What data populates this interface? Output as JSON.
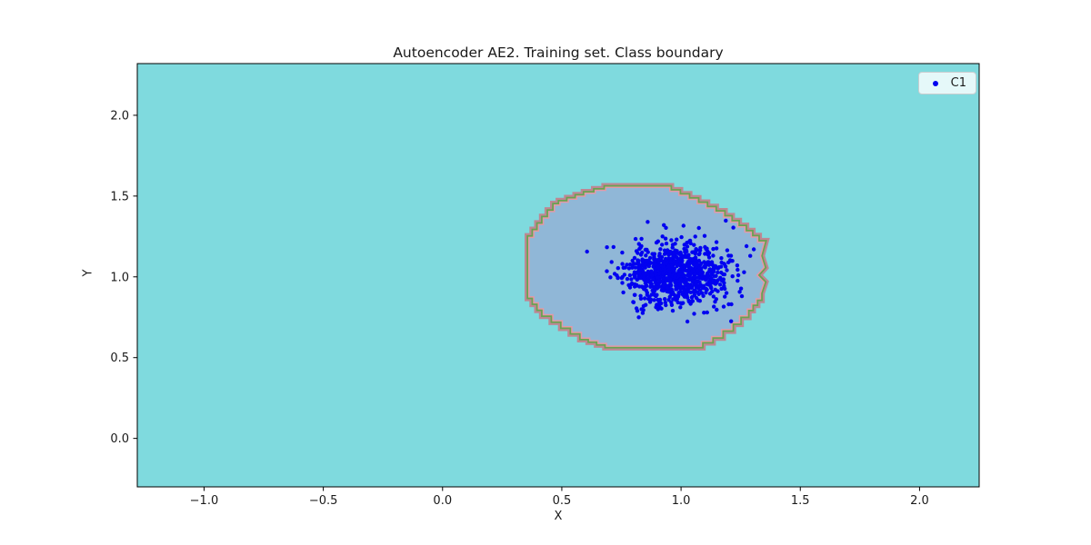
{
  "chart_data": {
    "type": "scatter",
    "title": "Autoencoder AE2. Training set. Class boundary",
    "xlabel": "X",
    "ylabel": "Y",
    "xlim": [
      -1.28,
      2.25
    ],
    "ylim": [
      -0.3,
      2.32
    ],
    "xticks": [
      -1.0,
      -0.5,
      0.0,
      0.5,
      1.0,
      1.5,
      2.0
    ],
    "yticks": [
      0.0,
      0.5,
      1.0,
      1.5,
      2.0
    ],
    "grid": false,
    "plot_background_color": "#7fdade",
    "figure_background_color": "#ffffff",
    "legend": {
      "position": "upper right",
      "entries": [
        {
          "label": "C1",
          "marker_color": "#0202f0"
        }
      ]
    },
    "series": [
      {
        "name": "C1",
        "kind": "gaussian_cluster",
        "color": "#0202f0",
        "center": [
          0.97,
          1.02
        ],
        "std": [
          0.105,
          0.095
        ],
        "n": 900,
        "seed": 11,
        "marker_radius_px": 2.2,
        "extra_points": [
          [
            1.305,
            1.17
          ],
          [
            1.29,
            1.13
          ],
          [
            1.21,
            0.725
          ],
          [
            1.255,
            0.88
          ],
          [
            0.86,
            1.34
          ],
          [
            1.24,
            1.01
          ]
        ]
      }
    ],
    "boundary": {
      "label": "class boundary region",
      "fill_color": "#90b7d7",
      "band_outer_color": "#bd8793",
      "band_mid_color": "#67a351",
      "band_inner_color": "#e598a6",
      "step_size": 0.045,
      "polygon": [
        [
          0.365,
          1.2
        ],
        [
          0.365,
          0.88
        ],
        [
          0.425,
          0.77
        ],
        [
          0.505,
          0.695
        ],
        [
          0.585,
          0.625
        ],
        [
          0.69,
          0.575
        ],
        [
          1.04,
          0.575
        ],
        [
          1.125,
          0.635
        ],
        [
          1.21,
          0.72
        ],
        [
          1.275,
          0.805
        ],
        [
          1.33,
          0.9
        ],
        [
          1.345,
          0.965
        ],
        [
          1.315,
          1.01
        ],
        [
          1.345,
          1.06
        ],
        [
          1.33,
          1.13
        ],
        [
          1.345,
          1.21
        ],
        [
          1.265,
          1.305
        ],
        [
          1.175,
          1.395
        ],
        [
          1.065,
          1.475
        ],
        [
          0.95,
          1.55
        ],
        [
          0.73,
          1.55
        ],
        [
          0.6,
          1.495
        ],
        [
          0.495,
          1.44
        ],
        [
          0.425,
          1.32
        ]
      ]
    }
  }
}
